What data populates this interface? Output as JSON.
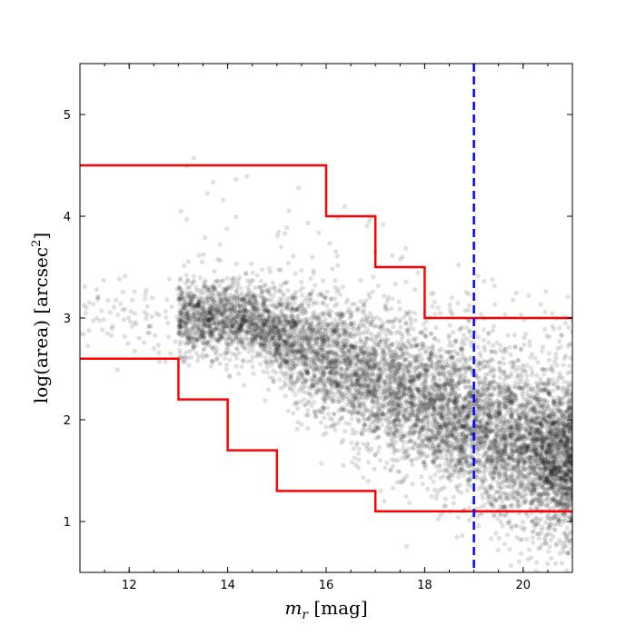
{
  "chart_data": {
    "type": "scatter",
    "title": "",
    "xlabel_main": "m",
    "xlabel_sub": "r",
    "xlabel_unit": " [mag]",
    "ylabel_main": "log(area) [arcsec",
    "ylabel_sup": "2",
    "ylabel_close": "]",
    "xlim": [
      11,
      21
    ],
    "ylim": [
      0.5,
      5.5
    ],
    "x_ticks": [
      12,
      14,
      16,
      18,
      20
    ],
    "y_ticks": [
      1,
      2,
      3,
      4,
      5
    ],
    "grid": false,
    "scatter_density": {
      "description": "dense cloud of black translucent points; ridge of area decreasing with magnitude",
      "point_color": "#000000",
      "point_opacity": 0.12,
      "ridge": [
        [
          14.5,
          3.0
        ],
        [
          16,
          2.6
        ],
        [
          18,
          2.15
        ],
        [
          20,
          1.75
        ],
        [
          21,
          1.6
        ]
      ],
      "ridge_spread": [
        [
          14.5,
          0.35
        ],
        [
          16,
          0.6
        ],
        [
          18,
          0.65
        ],
        [
          20,
          0.75
        ],
        [
          21,
          0.8
        ]
      ]
    },
    "upper_cut": {
      "color": "#ff0000",
      "points": [
        [
          11,
          4.5
        ],
        [
          16,
          4.5
        ],
        [
          16,
          4.0
        ],
        [
          17,
          4.0
        ],
        [
          17,
          3.5
        ],
        [
          18,
          3.5
        ],
        [
          18,
          3.0
        ],
        [
          21,
          3.0
        ]
      ]
    },
    "lower_cut": {
      "color": "#ff0000",
      "points": [
        [
          11,
          2.6
        ],
        [
          13,
          2.6
        ],
        [
          13,
          2.2
        ],
        [
          14,
          2.2
        ],
        [
          14,
          1.7
        ],
        [
          15,
          1.7
        ],
        [
          15,
          1.3
        ],
        [
          17,
          1.3
        ],
        [
          17,
          1.1
        ],
        [
          21,
          1.1
        ]
      ]
    },
    "vertical_line": {
      "x": 19,
      "color": "#0000ff",
      "style": "dashed"
    }
  }
}
